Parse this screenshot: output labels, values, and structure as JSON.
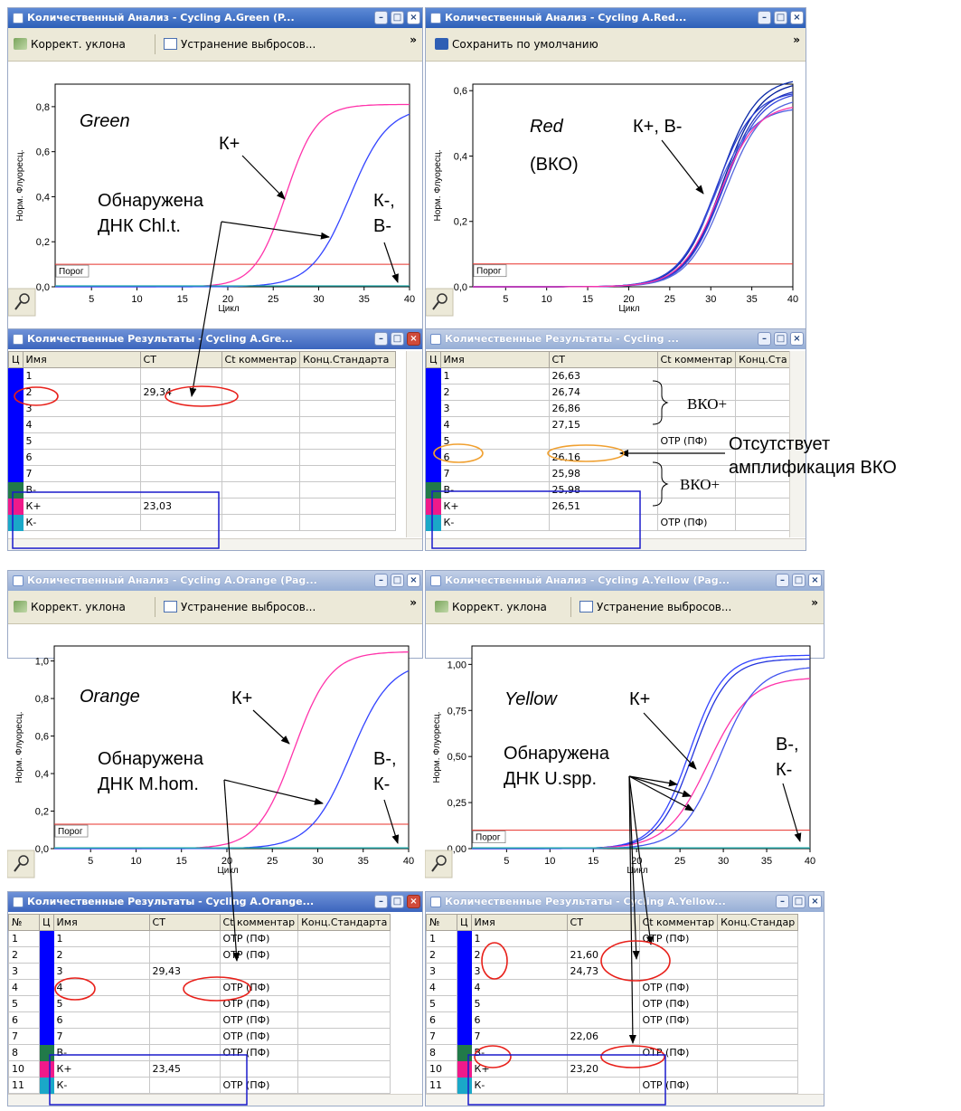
{
  "windows": {
    "green_chart": {
      "title": "Количественный Анализ - Cycling A.Green (P...",
      "tools": [
        "Коррект. уклона",
        "Устранение выбросов..."
      ],
      "more": "»"
    },
    "red_chart": {
      "title": "Количественный Анализ - Cycling A.Red...",
      "tools": [
        "Сохранить по умолчанию"
      ],
      "more": "»"
    },
    "orange_chart": {
      "title": "Количественный Анализ - Cycling A.Orange (Pag...",
      "tools": [
        "Коррект. уклона",
        "Устранение выбросов..."
      ],
      "more": "»"
    },
    "yellow_chart": {
      "title": "Количественный Анализ - Cycling A.Yellow (Pag...",
      "tools": [
        "Коррект. уклона",
        "Устранение выбросов..."
      ],
      "more": "»"
    },
    "green_table": {
      "title": "Количественные Результаты - Cycling A.Gre..."
    },
    "red_table": {
      "title": "Количественные Результаты - Cycling ..."
    },
    "orange_table": {
      "title": "Количественные Результаты - Cycling A.Orange..."
    },
    "yellow_table": {
      "title": "Количественные Результаты - Cycling A.Yellow..."
    }
  },
  "axes": {
    "ylabel": "Норм. Флуоресц.",
    "xlabel": "Цикл",
    "threshold_label": "Порог",
    "x_ticks": [
      "5",
      "10",
      "15",
      "20",
      "25",
      "30",
      "35",
      "40"
    ]
  },
  "chart_data": [
    {
      "type": "line",
      "channel": "Green",
      "xlabel": "Цикл",
      "ylabel": "Норм. Флуоресц.",
      "xlim": [
        1,
        40
      ],
      "ylim": [
        0,
        0.9
      ],
      "y_ticks": [
        "0,0",
        "0,2",
        "0,4",
        "0,6",
        "0,8"
      ],
      "y_values": [
        0,
        0.2,
        0.4,
        0.6,
        0.8
      ],
      "threshold": 0.1,
      "series": [
        {
          "name": "К+",
          "color": "#ff33aa",
          "ct": 23.03,
          "plateau": 0.81,
          "slope": 1.7
        },
        {
          "name": "2",
          "color": "#3344ff",
          "ct": 29.34,
          "plateau": 0.8,
          "slope": 2.1
        },
        {
          "name": "К-, В-",
          "color": "#22aaaa",
          "ct": null,
          "plateau": 0.0,
          "slope": 1.0
        }
      ]
    },
    {
      "type": "line",
      "channel": "Red",
      "xlabel": "Цикл",
      "ylabel": "Норм. Флуоресц.",
      "xlim": [
        1,
        40
      ],
      "ylim": [
        0,
        0.62
      ],
      "y_ticks": [
        "0,0",
        "0,2",
        "0,4",
        "0,6"
      ],
      "y_values": [
        0,
        0.2,
        0.4,
        0.6
      ],
      "threshold": 0.07,
      "series": [
        {
          "name": "1",
          "color": "#001a99",
          "ct": 26.63,
          "plateau": 0.63,
          "slope": 2.3
        },
        {
          "name": "2",
          "color": "#2233bb",
          "ct": 26.74,
          "plateau": 0.61,
          "slope": 2.3
        },
        {
          "name": "3",
          "color": "#3344dd",
          "ct": 26.86,
          "plateau": 0.6,
          "slope": 2.3
        },
        {
          "name": "4",
          "color": "#5566dd",
          "ct": 27.15,
          "plateau": 0.58,
          "slope": 2.3
        },
        {
          "name": "6",
          "color": "#0b2aa8",
          "ct": 26.16,
          "plateau": 0.64,
          "slope": 2.3
        },
        {
          "name": "7",
          "color": "#4c5fe0",
          "ct": 25.98,
          "plateau": 0.55,
          "slope": 2.3
        },
        {
          "name": "В-",
          "color": "#2a3fd0",
          "ct": 25.98,
          "plateau": 0.6,
          "slope": 2.3
        },
        {
          "name": "К+",
          "color": "#ff33aa",
          "ct": 26.51,
          "plateau": 0.56,
          "slope": 2.3
        }
      ]
    },
    {
      "type": "line",
      "channel": "Orange",
      "xlabel": "Цикл",
      "ylabel": "Норм. Флуоресц.",
      "xlim": [
        1,
        40
      ],
      "ylim": [
        0,
        1.08
      ],
      "y_ticks": [
        "0,0",
        "0,2",
        "0,4",
        "0,6",
        "0,8",
        "1,0"
      ],
      "y_values": [
        0,
        0.2,
        0.4,
        0.6,
        0.8,
        1.0
      ],
      "threshold": 0.13,
      "series": [
        {
          "name": "К+",
          "color": "#ff33aa",
          "ct": 23.45,
          "plateau": 1.05,
          "slope": 2.0
        },
        {
          "name": "3",
          "color": "#3344ff",
          "ct": 29.43,
          "plateau": 1.0,
          "slope": 2.2
        },
        {
          "name": "В-, К-",
          "color": "#22aaaa",
          "ct": null,
          "plateau": 0.0,
          "slope": 1.0
        }
      ]
    },
    {
      "type": "line",
      "channel": "Yellow",
      "xlabel": "Цикл",
      "ylabel": "Норм. Флуоресц.",
      "xlim": [
        1,
        40
      ],
      "ylim": [
        0,
        1.1
      ],
      "y_ticks": [
        "0,00",
        "0,25",
        "0,50",
        "0,75",
        "1,00"
      ],
      "y_values": [
        0,
        0.25,
        0.5,
        0.75,
        1.0
      ],
      "threshold": 0.1,
      "series": [
        {
          "name": "2",
          "color": "#3344ff",
          "ct": 21.6,
          "plateau": 1.05,
          "slope": 2.0
        },
        {
          "name": "7",
          "color": "#2233dd",
          "ct": 22.06,
          "plateau": 1.03,
          "slope": 2.0
        },
        {
          "name": "К+",
          "color": "#ff33aa",
          "ct": 23.2,
          "plateau": 0.93,
          "slope": 2.4
        },
        {
          "name": "3",
          "color": "#4455ee",
          "ct": 24.73,
          "plateau": 0.99,
          "slope": 2.2
        },
        {
          "name": "В-, К-",
          "color": "#22aaaa",
          "ct": null,
          "plateau": 0.0,
          "slope": 1.0
        }
      ]
    }
  ],
  "tables": {
    "green": {
      "headers": [
        "Ц",
        "Имя",
        "CT",
        "Ct комментар",
        "Конц.Стандарта"
      ],
      "rows": [
        {
          "c": "#0000ff",
          "name": "1",
          "ct": "",
          "cm": ""
        },
        {
          "c": "#0000ff",
          "name": "2",
          "ct": "29,34",
          "cm": ""
        },
        {
          "c": "#0000ff",
          "name": "3",
          "ct": "",
          "cm": ""
        },
        {
          "c": "#0000ff",
          "name": "4",
          "ct": "",
          "cm": ""
        },
        {
          "c": "#0000ff",
          "name": "5",
          "ct": "",
          "cm": ""
        },
        {
          "c": "#0000ff",
          "name": "6",
          "ct": "",
          "cm": ""
        },
        {
          "c": "#0000ff",
          "name": "7",
          "ct": "",
          "cm": ""
        },
        {
          "c": "#217a49",
          "name": "В-",
          "ct": "",
          "cm": ""
        },
        {
          "c": "#f01a8a",
          "name": "К+",
          "ct": "23,03",
          "cm": ""
        },
        {
          "c": "#1aa8c8",
          "name": "К-",
          "ct": "",
          "cm": ""
        }
      ]
    },
    "red": {
      "headers": [
        "Ц",
        "Имя",
        "CT",
        "Ct комментар",
        "Конц.Ста"
      ],
      "rows": [
        {
          "c": "#0000ff",
          "name": "1",
          "ct": "26,63",
          "cm": ""
        },
        {
          "c": "#0000ff",
          "name": "2",
          "ct": "26,74",
          "cm": ""
        },
        {
          "c": "#0000ff",
          "name": "3",
          "ct": "26,86",
          "cm": ""
        },
        {
          "c": "#0000ff",
          "name": "4",
          "ct": "27,15",
          "cm": ""
        },
        {
          "c": "#0000ff",
          "name": "5",
          "ct": "",
          "cm": "OTP (ПФ)"
        },
        {
          "c": "#0000ff",
          "name": "6",
          "ct": "26,16",
          "cm": ""
        },
        {
          "c": "#0000ff",
          "name": "7",
          "ct": "25,98",
          "cm": ""
        },
        {
          "c": "#217a49",
          "name": "В-",
          "ct": "25,98",
          "cm": ""
        },
        {
          "c": "#f01a8a",
          "name": "К+",
          "ct": "26,51",
          "cm": ""
        },
        {
          "c": "#1aa8c8",
          "name": "К-",
          "ct": "",
          "cm": "OTP (ПФ)"
        }
      ]
    },
    "orange": {
      "headers": [
        "№",
        "Ц",
        "Имя",
        "CT",
        "Ct комментар",
        "Конц.Стандарта"
      ],
      "rows": [
        {
          "n": "1",
          "c": "#0000ff",
          "name": "1",
          "ct": "",
          "cm": "OTP (ПФ)"
        },
        {
          "n": "2",
          "c": "#0000ff",
          "name": "2",
          "ct": "",
          "cm": "OTP (ПФ)"
        },
        {
          "n": "3",
          "c": "#0000ff",
          "name": "3",
          "ct": "29,43",
          "cm": ""
        },
        {
          "n": "4",
          "c": "#0000ff",
          "name": "4",
          "ct": "",
          "cm": "OTP (ПФ)"
        },
        {
          "n": "5",
          "c": "#0000ff",
          "name": "5",
          "ct": "",
          "cm": "OTP (ПФ)"
        },
        {
          "n": "6",
          "c": "#0000ff",
          "name": "6",
          "ct": "",
          "cm": "OTP (ПФ)"
        },
        {
          "n": "7",
          "c": "#0000ff",
          "name": "7",
          "ct": "",
          "cm": "OTP (ПФ)"
        },
        {
          "n": "8",
          "c": "#217a49",
          "name": "В-",
          "ct": "",
          "cm": "OTP (ПФ)"
        },
        {
          "n": "10",
          "c": "#f01a8a",
          "name": "К+",
          "ct": "23,45",
          "cm": ""
        },
        {
          "n": "11",
          "c": "#1aa8c8",
          "name": "К-",
          "ct": "",
          "cm": "OTP (ПФ)"
        }
      ]
    },
    "yellow": {
      "headers": [
        "№",
        "Ц",
        "Имя",
        "CT",
        "Ct комментар",
        "Конц.Стандар"
      ],
      "rows": [
        {
          "n": "1",
          "c": "#0000ff",
          "name": "1",
          "ct": "",
          "cm": "OTP (ПФ)"
        },
        {
          "n": "2",
          "c": "#0000ff",
          "name": "2",
          "ct": "21,60",
          "cm": ""
        },
        {
          "n": "3",
          "c": "#0000ff",
          "name": "3",
          "ct": "24,73",
          "cm": ""
        },
        {
          "n": "4",
          "c": "#0000ff",
          "name": "4",
          "ct": "",
          "cm": "OTP (ПФ)"
        },
        {
          "n": "5",
          "c": "#0000ff",
          "name": "5",
          "ct": "",
          "cm": "OTP (ПФ)"
        },
        {
          "n": "6",
          "c": "#0000ff",
          "name": "6",
          "ct": "",
          "cm": "OTP (ПФ)"
        },
        {
          "n": "7",
          "c": "#0000ff",
          "name": "7",
          "ct": "22,06",
          "cm": ""
        },
        {
          "n": "8",
          "c": "#217a49",
          "name": "В-",
          "ct": "",
          "cm": "OTP (ПФ)"
        },
        {
          "n": "10",
          "c": "#f01a8a",
          "name": "К+",
          "ct": "23,20",
          "cm": ""
        },
        {
          "n": "11",
          "c": "#1aa8c8",
          "name": "К-",
          "ct": "",
          "cm": "OTP (ПФ)"
        }
      ]
    }
  },
  "annotations": {
    "green_title": "Green",
    "green_kplus": "К+",
    "green_found_1": "Обнаружена",
    "green_found_2": "ДНК Chl.t.",
    "green_neg_1": "К-,",
    "green_neg_2": "В-",
    "red_title_1": "Red",
    "red_title_2": "(ВКО)",
    "red_kb": "К+, В-",
    "red_vko1": "ВКО+",
    "red_vko2": "ВКО+",
    "red_absent_1": "Отсутствует",
    "red_absent_2": "амплификация ВКО",
    "orange_title": "Orange",
    "orange_kplus": "К+",
    "orange_found_1": "Обнаружена",
    "orange_found_2": "ДНК M.hom.",
    "orange_neg_1": "В-,",
    "orange_neg_2": "К-",
    "yellow_title": "Yellow",
    "yellow_kplus": "К+",
    "yellow_found_1": "Обнаружена",
    "yellow_found_2": "ДНК U.spp.",
    "yellow_neg_1": "В-,",
    "yellow_neg_2": "К-"
  },
  "colors": {
    "threshold": "#e8302a",
    "marker": "#e8201a",
    "box": "#0000cc",
    "marker_orange": "#f0a030"
  }
}
